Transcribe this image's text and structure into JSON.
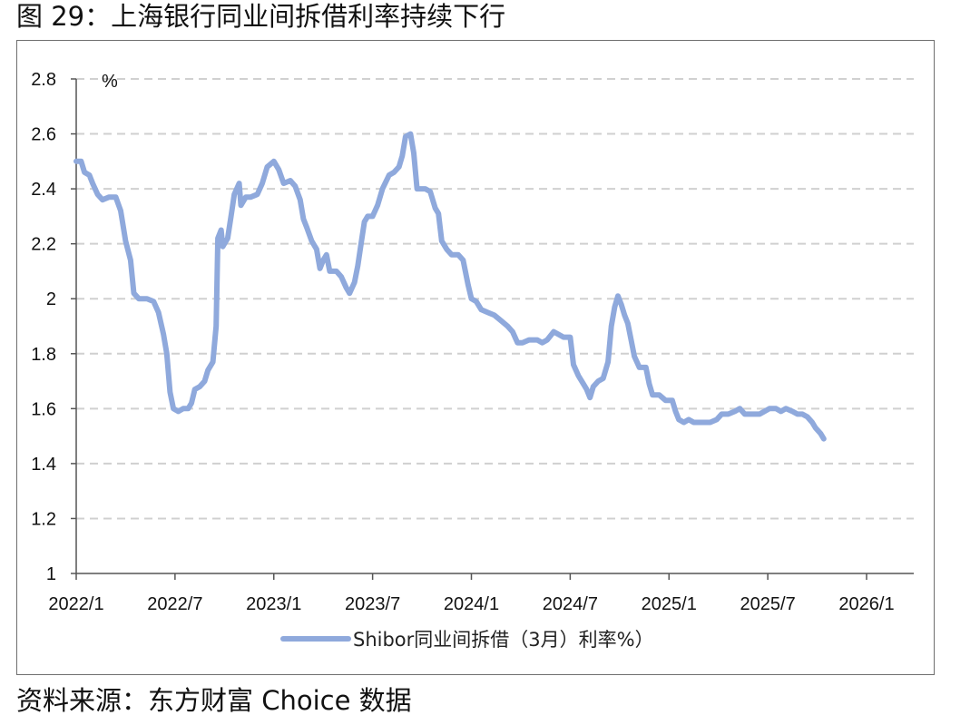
{
  "page": {
    "title": "图 29：上海银行同业间拆借利率持续下行",
    "source": "资料来源：东方财富 Choice 数据"
  },
  "chart_data": {
    "type": "line",
    "title": "图 29：上海银行同业间拆借利率持续下行",
    "xlabel": "",
    "ylabel": "",
    "unit_label": "%",
    "ylim": [
      1,
      2.8
    ],
    "y_ticks": [
      1,
      1.2,
      1.4,
      1.6,
      1.8,
      2,
      2.2,
      2.4,
      2.6,
      2.8
    ],
    "y_tick_labels": [
      "1",
      "1.2",
      "1.4",
      "1.6",
      "1.8",
      "2",
      "2.2",
      "2.4",
      "2.6",
      "2.8"
    ],
    "x_ticks": [
      "2022/1",
      "2022/7",
      "2023/1",
      "2023/7",
      "2024/1",
      "2024/7",
      "2025/1",
      "2025/7",
      "2026/1"
    ],
    "grid": "horizontal dashed",
    "legend_position": "bottom",
    "line_color": "#8fa9dc",
    "series": [
      {
        "name": "Shibor同业间拆借（3月）利率%）",
        "points": [
          [
            "2022/1",
            2.5
          ],
          [
            "2022/1.3",
            2.5
          ],
          [
            "2022/1.5",
            2.46
          ],
          [
            "2022/1.8",
            2.45
          ],
          [
            "2022/2",
            2.42
          ],
          [
            "2022/2.3",
            2.38
          ],
          [
            "2022/2.6",
            2.36
          ],
          [
            "2022/3",
            2.37
          ],
          [
            "2022/3.4",
            2.37
          ],
          [
            "2022/3.7",
            2.32
          ],
          [
            "2022/4",
            2.21
          ],
          [
            "2022/4.3",
            2.14
          ],
          [
            "2022/4.5",
            2.02
          ],
          [
            "2022/4.8",
            2.0
          ],
          [
            "2022/5.3",
            2.0
          ],
          [
            "2022/5.7",
            1.99
          ],
          [
            "2022/6",
            1.95
          ],
          [
            "2022/6.3",
            1.87
          ],
          [
            "2022/6.5",
            1.8
          ],
          [
            "2022/6.7",
            1.66
          ],
          [
            "2022/6.9",
            1.6
          ],
          [
            "2022/7.2",
            1.59
          ],
          [
            "2022/7.5",
            1.6
          ],
          [
            "2022/7.8",
            1.6
          ],
          [
            "2022/8",
            1.62
          ],
          [
            "2022/8.2",
            1.67
          ],
          [
            "2022/8.5",
            1.68
          ],
          [
            "2022/8.8",
            1.7
          ],
          [
            "2022/9",
            1.74
          ],
          [
            "2022/9.3",
            1.77
          ],
          [
            "2022/9.5",
            1.9
          ],
          [
            "2022/9.6",
            2.22
          ],
          [
            "2022/9.8",
            2.25
          ],
          [
            "2022/9.9",
            2.19
          ],
          [
            "2022/10.2",
            2.22
          ],
          [
            "2022/10.4",
            2.3
          ],
          [
            "2022/10.6",
            2.38
          ],
          [
            "2022/10.9",
            2.42
          ],
          [
            "2022/11",
            2.34
          ],
          [
            "2022/11.3",
            2.37
          ],
          [
            "2022/11.6",
            2.37
          ],
          [
            "2022/12",
            2.38
          ],
          [
            "2022/12.3",
            2.42
          ],
          [
            "2022/12.6",
            2.48
          ],
          [
            "2023/1",
            2.5
          ],
          [
            "2023/1.3",
            2.47
          ],
          [
            "2023/1.6",
            2.42
          ],
          [
            "2023/2",
            2.43
          ],
          [
            "2023/2.3",
            2.41
          ],
          [
            "2023/2.6",
            2.36
          ],
          [
            "2023/2.8",
            2.29
          ],
          [
            "2023/3",
            2.26
          ],
          [
            "2023/3.3",
            2.21
          ],
          [
            "2023/3.6",
            2.18
          ],
          [
            "2023/3.8",
            2.11
          ],
          [
            "2023/4",
            2.14
          ],
          [
            "2023/4.2",
            2.16
          ],
          [
            "2023/4.4",
            2.1
          ],
          [
            "2023/4.8",
            2.1
          ],
          [
            "2023/5.1",
            2.08
          ],
          [
            "2023/5.4",
            2.04
          ],
          [
            "2023/5.6",
            2.02
          ],
          [
            "2023/5.9",
            2.06
          ],
          [
            "2023/6.1",
            2.12
          ],
          [
            "2023/6.3",
            2.2
          ],
          [
            "2023/6.5",
            2.28
          ],
          [
            "2023/6.7",
            2.3
          ],
          [
            "2023/7",
            2.3
          ],
          [
            "2023/7.3",
            2.34
          ],
          [
            "2023/7.6",
            2.4
          ],
          [
            "2023/8",
            2.45
          ],
          [
            "2023/8.3",
            2.46
          ],
          [
            "2023/8.6",
            2.48
          ],
          [
            "2023/8.8",
            2.52
          ],
          [
            "2023/9",
            2.59
          ],
          [
            "2023/9.3",
            2.6
          ],
          [
            "2023/9.5",
            2.53
          ],
          [
            "2023/9.7",
            2.4
          ],
          [
            "2023/10.2",
            2.4
          ],
          [
            "2023/10.5",
            2.39
          ],
          [
            "2023/10.8",
            2.33
          ],
          [
            "2023/11",
            2.31
          ],
          [
            "2023/11.2",
            2.21
          ],
          [
            "2023/11.5",
            2.18
          ],
          [
            "2023/11.8",
            2.16
          ],
          [
            "2023/12.2",
            2.16
          ],
          [
            "2023/12.5",
            2.14
          ],
          [
            "2023/12.8",
            2.05
          ],
          [
            "2024/1",
            2.0
          ],
          [
            "2024/1.3",
            1.99
          ],
          [
            "2024/1.6",
            1.96
          ],
          [
            "2024/2",
            1.95
          ],
          [
            "2024/2.4",
            1.94
          ],
          [
            "2024/2.8",
            1.92
          ],
          [
            "2024/3.2",
            1.9
          ],
          [
            "2024/3.5",
            1.88
          ],
          [
            "2024/3.8",
            1.84
          ],
          [
            "2024/4.1",
            1.84
          ],
          [
            "2024/4.5",
            1.85
          ],
          [
            "2024/5",
            1.85
          ],
          [
            "2024/5.3",
            1.84
          ],
          [
            "2024/5.6",
            1.85
          ],
          [
            "2024/6",
            1.88
          ],
          [
            "2024/6.3",
            1.87
          ],
          [
            "2024/6.6",
            1.86
          ],
          [
            "2024/7",
            1.86
          ],
          [
            "2024/7.2",
            1.76
          ],
          [
            "2024/7.5",
            1.72
          ],
          [
            "2024/7.8",
            1.69
          ],
          [
            "2024/8",
            1.67
          ],
          [
            "2024/8.2",
            1.64
          ],
          [
            "2024/8.4",
            1.68
          ],
          [
            "2024/8.7",
            1.7
          ],
          [
            "2024/9",
            1.71
          ],
          [
            "2024/9.3",
            1.77
          ],
          [
            "2024/9.5",
            1.9
          ],
          [
            "2024/9.7",
            1.97
          ],
          [
            "2024/9.9",
            2.01
          ],
          [
            "2024/10.1",
            1.98
          ],
          [
            "2024/10.3",
            1.94
          ],
          [
            "2024/10.5",
            1.91
          ],
          [
            "2024/10.7",
            1.85
          ],
          [
            "2024/10.9",
            1.79
          ],
          [
            "2024/11.2",
            1.75
          ],
          [
            "2024/11.6",
            1.75
          ],
          [
            "2024/11.8",
            1.69
          ],
          [
            "2024/12",
            1.65
          ],
          [
            "2024/12.4",
            1.65
          ],
          [
            "2024/12.8",
            1.63
          ],
          [
            "2025/1.2",
            1.63
          ],
          [
            "2025/1.4",
            1.59
          ],
          [
            "2025/1.6",
            1.56
          ],
          [
            "2025/1.9",
            1.55
          ],
          [
            "2025/2.2",
            1.56
          ],
          [
            "2025/2.5",
            1.55
          ],
          [
            "2025/3",
            1.55
          ],
          [
            "2025/3.5",
            1.55
          ],
          [
            "2025/3.9",
            1.56
          ],
          [
            "2025/4.2",
            1.58
          ],
          [
            "2025/4.6",
            1.58
          ],
          [
            "2025/5",
            1.59
          ],
          [
            "2025/5.3",
            1.6
          ],
          [
            "2025/5.6",
            1.58
          ],
          [
            "2025/6",
            1.58
          ],
          [
            "2025/6.5",
            1.58
          ],
          [
            "2025/6.8",
            1.59
          ],
          [
            "2025/7.1",
            1.6
          ],
          [
            "2025/7.5",
            1.6
          ],
          [
            "2025/7.8",
            1.59
          ],
          [
            "2025/8.1",
            1.6
          ],
          [
            "2025/8.5",
            1.59
          ],
          [
            "2025/8.8",
            1.58
          ],
          [
            "2025/9.1",
            1.58
          ],
          [
            "2025/9.4",
            1.57
          ],
          [
            "2025/9.7",
            1.55
          ],
          [
            "2025/9.9",
            1.53
          ],
          [
            "2025/10.2",
            1.51
          ],
          [
            "2025/10.4",
            1.49
          ]
        ]
      }
    ]
  }
}
